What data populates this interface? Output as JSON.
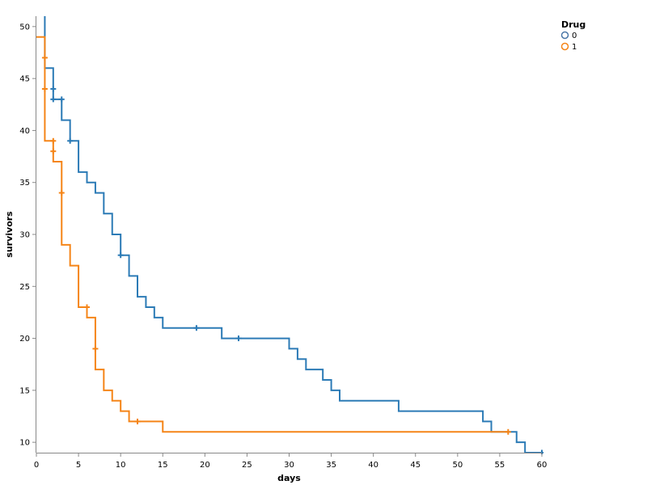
{
  "chart_data": {
    "type": "line",
    "step": "after",
    "title": "",
    "xlabel": "days",
    "ylabel": "survivors",
    "xlim": [
      0,
      60
    ],
    "ylim": [
      9,
      51
    ],
    "xticks": [
      0,
      5,
      10,
      15,
      20,
      25,
      30,
      35,
      40,
      45,
      50,
      55,
      60
    ],
    "yticks": [
      10,
      15,
      20,
      25,
      30,
      35,
      40,
      45,
      50
    ],
    "grid": false,
    "legend": {
      "title": "Drug",
      "placement": "top-right",
      "entries": [
        {
          "label": "0",
          "color": "#4c78a8"
        },
        {
          "label": "1",
          "color": "#f58518"
        }
      ]
    },
    "series": [
      {
        "name": "0",
        "color": "#2c7bb6",
        "steps": [
          [
            1,
            51
          ],
          [
            1,
            46
          ],
          [
            2,
            46
          ],
          [
            2,
            43
          ],
          [
            3,
            43
          ],
          [
            3,
            41
          ],
          [
            4,
            41
          ],
          [
            4,
            39
          ],
          [
            5,
            39
          ],
          [
            5,
            36
          ],
          [
            6,
            36
          ],
          [
            6,
            35
          ],
          [
            7,
            35
          ],
          [
            7,
            34
          ],
          [
            8,
            34
          ],
          [
            8,
            32
          ],
          [
            9,
            32
          ],
          [
            9,
            30
          ],
          [
            10,
            30
          ],
          [
            10,
            28
          ],
          [
            11,
            28
          ],
          [
            11,
            26
          ],
          [
            12,
            26
          ],
          [
            12,
            24
          ],
          [
            13,
            24
          ],
          [
            13,
            23
          ],
          [
            14,
            23
          ],
          [
            14,
            22
          ],
          [
            15,
            22
          ],
          [
            15,
            21
          ],
          [
            22,
            21
          ],
          [
            22,
            20
          ],
          [
            30,
            20
          ],
          [
            30,
            19
          ],
          [
            31,
            19
          ],
          [
            31,
            18
          ],
          [
            32,
            18
          ],
          [
            32,
            17
          ],
          [
            34,
            17
          ],
          [
            34,
            16
          ],
          [
            35,
            16
          ],
          [
            35,
            15
          ],
          [
            36,
            15
          ],
          [
            36,
            14
          ],
          [
            43,
            14
          ],
          [
            43,
            13
          ],
          [
            53,
            13
          ],
          [
            53,
            12
          ],
          [
            54,
            12
          ],
          [
            54,
            11
          ],
          [
            57,
            11
          ],
          [
            57,
            10
          ],
          [
            58,
            10
          ],
          [
            58,
            9
          ],
          [
            60,
            9
          ]
        ],
        "censored": [
          [
            2,
            44
          ],
          [
            2,
            43
          ],
          [
            3,
            43
          ],
          [
            4,
            39
          ],
          [
            10,
            28
          ],
          [
            19,
            21
          ],
          [
            24,
            20
          ],
          [
            60,
            9
          ]
        ]
      },
      {
        "name": "1",
        "color": "#f58518",
        "steps": [
          [
            0,
            49
          ],
          [
            1,
            49
          ],
          [
            1,
            39
          ],
          [
            2,
            39
          ],
          [
            2,
            37
          ],
          [
            3,
            37
          ],
          [
            3,
            29
          ],
          [
            4,
            29
          ],
          [
            4,
            27
          ],
          [
            5,
            27
          ],
          [
            5,
            23
          ],
          [
            6,
            23
          ],
          [
            6,
            22
          ],
          [
            7,
            22
          ],
          [
            7,
            17
          ],
          [
            8,
            17
          ],
          [
            8,
            15
          ],
          [
            9,
            15
          ],
          [
            9,
            14
          ],
          [
            10,
            14
          ],
          [
            10,
            13
          ],
          [
            11,
            13
          ],
          [
            11,
            12
          ],
          [
            15,
            12
          ],
          [
            15,
            11
          ],
          [
            56,
            11
          ]
        ],
        "censored": [
          [
            1,
            47
          ],
          [
            1,
            44
          ],
          [
            2,
            39
          ],
          [
            2,
            38
          ],
          [
            3,
            34
          ],
          [
            6,
            23
          ],
          [
            7,
            19
          ],
          [
            12,
            12
          ],
          [
            56,
            11
          ]
        ]
      }
    ]
  }
}
